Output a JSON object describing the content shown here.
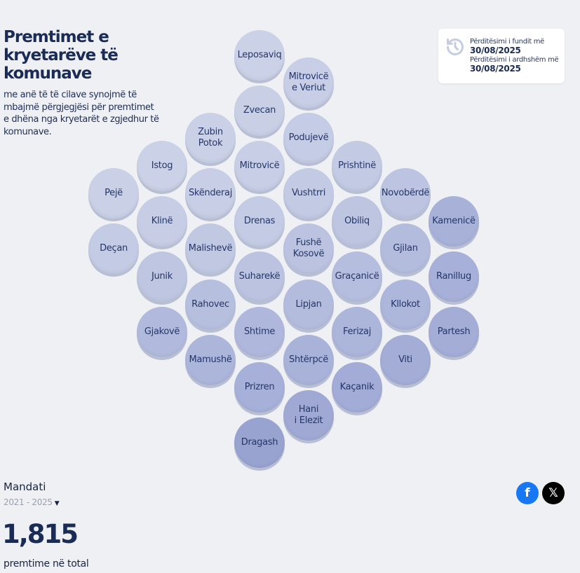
{
  "header": {
    "title": "Premtimet e kryetarëve të komunave",
    "subtitle": "me anë të të cilave synojmë të mbajmë përgjegjësi për premtimet e dhëna nga kryetarët e zgjedhur të komunave."
  },
  "update_card": {
    "icon": "history-icon",
    "last_label": "Përditësimi i fundit më",
    "last_date": "30/08/2025",
    "next_label": "Përditësimi i ardhshëm më",
    "next_date": "30/08/2025"
  },
  "municipalities": [
    {
      "label": "Leposaviq",
      "color": "#cbd1e7"
    },
    {
      "label": "Mitrovicë\ne Veriut",
      "color": "#c7cee6"
    },
    {
      "label": "Zvecan",
      "color": "#c9d0e6"
    },
    {
      "label": "Podujevë",
      "color": "#c5cce5"
    },
    {
      "label": "Zubin\nPotok",
      "color": "#cad0e6"
    },
    {
      "label": "Istog",
      "color": "#cbd1e6"
    },
    {
      "label": "Mitrovicë",
      "color": "#c7cee5"
    },
    {
      "label": "Prishtinë",
      "color": "#c3cbe4"
    },
    {
      "label": "Pejë",
      "color": "#cad0e6"
    },
    {
      "label": "Skënderaj",
      "color": "#c7cee5"
    },
    {
      "label": "Vushtrri",
      "color": "#c3cae4"
    },
    {
      "label": "Novobërdë",
      "color": "#bcc4e1"
    },
    {
      "label": "Klinë",
      "color": "#c6cde5"
    },
    {
      "label": "Drenas",
      "color": "#c4cbe4"
    },
    {
      "label": "Obiliq",
      "color": "#bdc5e1"
    },
    {
      "label": "Kamenicë",
      "color": "#a8b2d9"
    },
    {
      "label": "Deçan",
      "color": "#c4cbe4"
    },
    {
      "label": "Malishevë",
      "color": "#c0c8e2"
    },
    {
      "label": "Fushë\nKosovë",
      "color": "#bbc3e0"
    },
    {
      "label": "Gjilan",
      "color": "#b3bcdd"
    },
    {
      "label": "Junik",
      "color": "#bec6e1"
    },
    {
      "label": "Suharekë",
      "color": "#bbc3e0"
    },
    {
      "label": "Graçanicë",
      "color": "#b5bede"
    },
    {
      "label": "Ranillug",
      "color": "#a6b0d8"
    },
    {
      "label": "Rahovec",
      "color": "#b7bfdf"
    },
    {
      "label": "Lipjan",
      "color": "#b3bcdd"
    },
    {
      "label": "Kllokot",
      "color": "#adb6db"
    },
    {
      "label": "Gjakovë",
      "color": "#b1badc"
    },
    {
      "label": "Shtime",
      "color": "#afb8dc"
    },
    {
      "label": "Ferizaj",
      "color": "#acb5da"
    },
    {
      "label": "Partesh",
      "color": "#a3add6"
    },
    {
      "label": "Mamushë",
      "color": "#acb5da"
    },
    {
      "label": "Shtërpcë",
      "color": "#a9b3d9"
    },
    {
      "label": "Viti",
      "color": "#a3add6"
    },
    {
      "label": "Prizren",
      "color": "#a6b0d8"
    },
    {
      "label": "Kaçanik",
      "color": "#a2acd6"
    },
    {
      "label": "Hani\ni Elezit",
      "color": "#9fa9d4"
    },
    {
      "label": "Dragash",
      "color": "#98a3d0"
    }
  ],
  "mandate": {
    "label": "Mandati",
    "selected": "2021 - 2025"
  },
  "total": {
    "value": "1,815",
    "label": "premtime në total"
  },
  "social": {
    "facebook": "f",
    "x": "𝕏"
  }
}
